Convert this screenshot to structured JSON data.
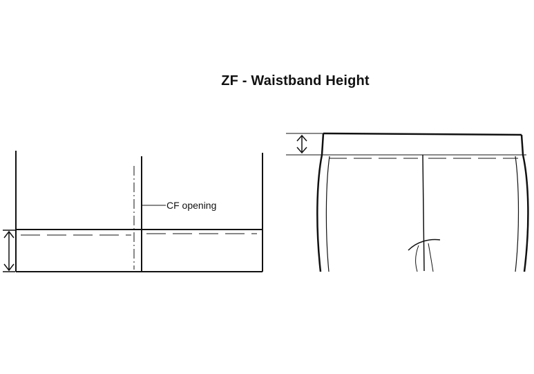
{
  "title": "ZF - Waistband Height",
  "callout_label": "CF opening",
  "colors": {
    "line": "#111111",
    "background": "#ffffff"
  }
}
